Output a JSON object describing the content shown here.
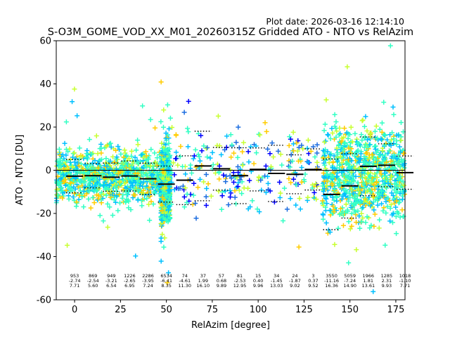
{
  "chart_data": {
    "type": "scatter",
    "plot_date": "Plot date: 2026-03-16 12:14:10",
    "title": "S-O3M_GOME_VOD_XX_M01_20260315Z Gridded ATO - NTO vs RelAzim",
    "xlabel": "RelAzim [degree]",
    "ylabel": "ATO - NTO [DU]",
    "xlim": [
      -10,
      180
    ],
    "ylim": [
      -60,
      60
    ],
    "xticks": [
      0,
      25,
      50,
      75,
      100,
      125,
      150,
      175
    ],
    "yticks": [
      -60,
      -40,
      -20,
      0,
      20,
      40,
      60
    ],
    "colors": {
      "high_density": "#32ffc4",
      "mid_density": "#00c0ff",
      "upper_mid": "#c7ff30",
      "warm": "#ffcc00",
      "low_density": "#0000ff",
      "sparse": "#1e6ee0"
    },
    "bins": [
      {
        "x": 0,
        "n": "953",
        "mean": "-2.74",
        "std": "7.71"
      },
      {
        "x": 10,
        "n": "869",
        "mean": "-2.54",
        "std": "5.60"
      },
      {
        "x": 20,
        "n": "949",
        "mean": "-3.21",
        "std": "6.54"
      },
      {
        "x": 30,
        "n": "1226",
        "mean": "-2.65",
        "std": "6.95"
      },
      {
        "x": 40,
        "n": "2286",
        "mean": "-3.95",
        "std": "7.24"
      },
      {
        "x": 50,
        "n": "6534",
        "mean": "-6.41",
        "std": "8.35"
      },
      {
        "x": 60,
        "n": "74",
        "mean": "-4.61",
        "std": "11.30"
      },
      {
        "x": 70,
        "n": "37",
        "mean": "1.99",
        "std": "16.10"
      },
      {
        "x": 80,
        "n": "57",
        "mean": "0.68",
        "std": "9.89"
      },
      {
        "x": 90,
        "n": "81",
        "mean": "-2.53",
        "std": "12.95"
      },
      {
        "x": 100,
        "n": "15",
        "mean": "0.40",
        "std": "9.96"
      },
      {
        "x": 110,
        "n": "34",
        "mean": "-1.45",
        "std": "13.03"
      },
      {
        "x": 120,
        "n": "24",
        "mean": "-1.87",
        "std": "9.02"
      },
      {
        "x": 130,
        "n": "3",
        "mean": "0.37",
        "std": "9.52"
      },
      {
        "x": 140,
        "n": "3550",
        "mean": "-11.16",
        "std": "16.36"
      },
      {
        "x": 150,
        "n": "5059",
        "mean": "-7.24",
        "std": "14.90"
      },
      {
        "x": 160,
        "n": "1966",
        "mean": "1.81",
        "std": "13.61"
      },
      {
        "x": 170,
        "n": "1285",
        "mean": "2.31",
        "std": "9.93"
      },
      {
        "x": 180,
        "n": "1018",
        "mean": "-1.10",
        "std": "7.71"
      }
    ],
    "clusters": [
      {
        "x_range": [
          -10,
          47
        ],
        "y_center": -3,
        "spread": 11,
        "density": "high"
      },
      {
        "x_range": [
          47,
          52
        ],
        "y_center": -7,
        "spread": 14,
        "density": "high"
      },
      {
        "x_range": [
          52,
          133
        ],
        "y_center": 0,
        "spread": 13,
        "density": "sparse"
      },
      {
        "x_range": [
          135,
          180
        ],
        "y_center": -2,
        "spread": 20,
        "density": "high"
      }
    ]
  }
}
